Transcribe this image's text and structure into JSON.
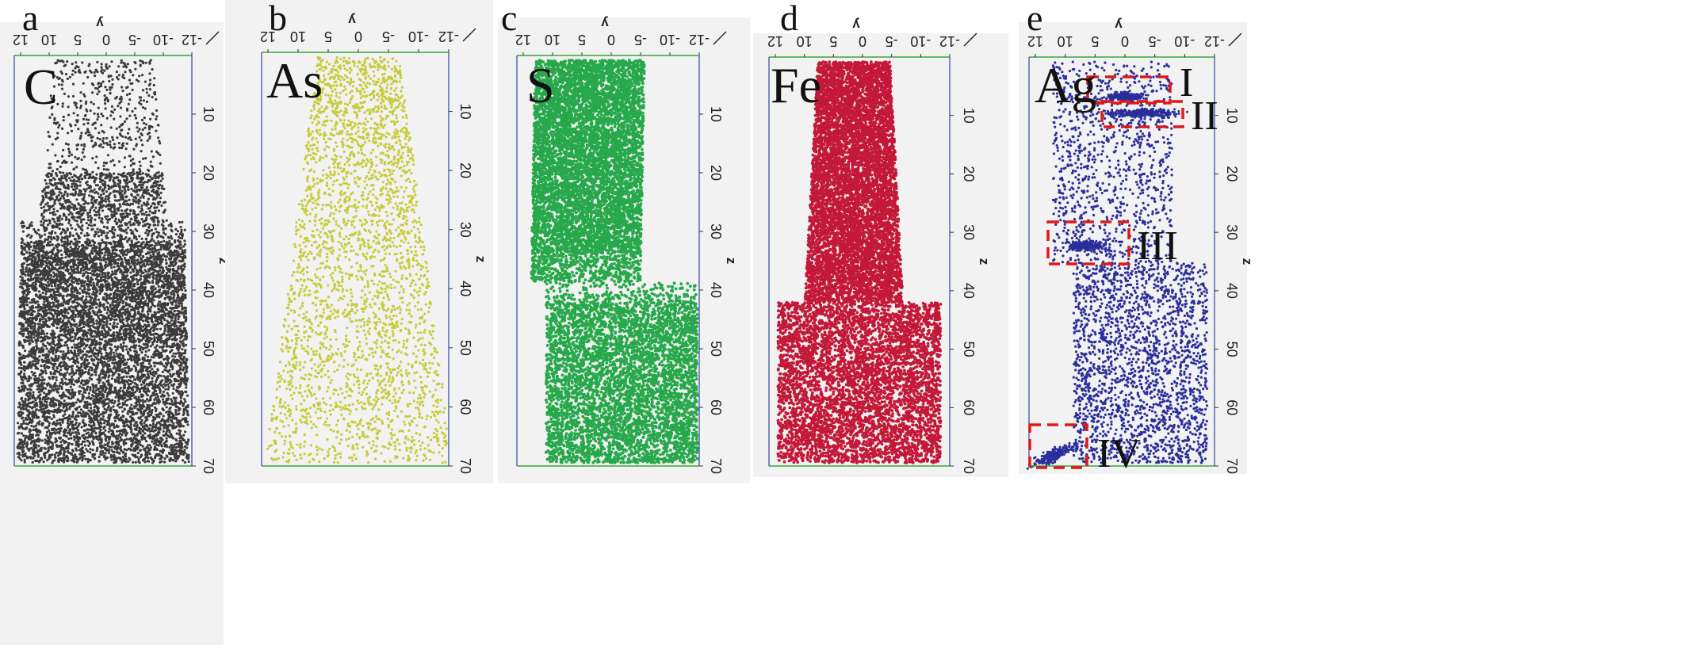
{
  "figure": {
    "panels": [
      {
        "letter": "a",
        "element": "C",
        "color": "#3b3b3b",
        "count": 9000
      },
      {
        "letter": "b",
        "element": "As",
        "color": "#c7cc3a",
        "count": 3000
      },
      {
        "letter": "c",
        "element": "S",
        "color": "#27a84a",
        "count": 12000
      },
      {
        "letter": "d",
        "element": "Fe",
        "color": "#c41838",
        "count": 12000
      },
      {
        "letter": "e",
        "element": "Ag",
        "color": "#2b2f9c",
        "count": 3200
      }
    ],
    "y_axis_ticks": [
      "12",
      "10",
      "5",
      "0",
      "-5",
      "-10",
      "-12"
    ],
    "y_axis_label": "y",
    "z_axis_ticks": [
      "10",
      "20",
      "30",
      "40",
      "50",
      "60",
      "70"
    ],
    "z_axis_label": "z",
    "clusters": [
      "I",
      "II",
      "III",
      "IV"
    ]
  }
}
